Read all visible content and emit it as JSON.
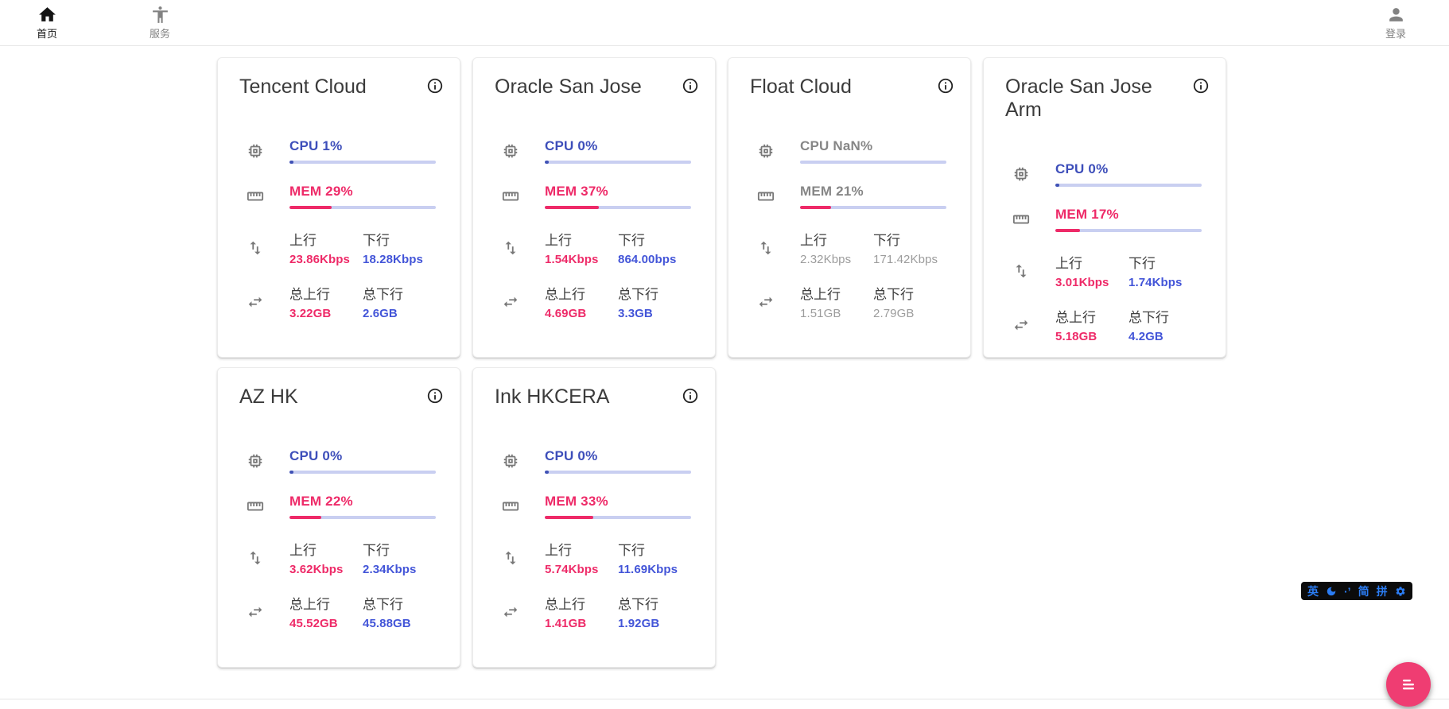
{
  "colors": {
    "accent_blue": "#3d4eba",
    "value_blue": "#4355d8",
    "accent_pink": "#ee2a68",
    "bar_blue": "#3f51b5",
    "bar_track": "#c9cff1",
    "muted_label": "#868686",
    "muted_value": "#9c9c9c",
    "fab_pink": "#ef3d72",
    "ime_blue": "#2b7cf2"
  },
  "navbar": {
    "items_left": [
      {
        "label": "首页",
        "icon": "home-icon",
        "active": true
      },
      {
        "label": "服务",
        "icon": "accessibility-icon",
        "active": false
      }
    ],
    "items_right": [
      {
        "label": "登录",
        "icon": "person-icon",
        "active": false
      }
    ]
  },
  "card_labels": {
    "up": "上行",
    "down": "下行",
    "total_up": "总上行",
    "total_down": "总下行"
  },
  "servers": [
    {
      "name": "Tencent Cloud",
      "cpu_label": "CPU 1%",
      "cpu_pct": 1,
      "mem_label": "MEM 29%",
      "mem_pct": 29,
      "up_value": "23.86Kbps",
      "down_value": "18.28Kbps",
      "total_up_value": "3.22GB",
      "total_down_value": "2.6GB",
      "muted": false
    },
    {
      "name": "Oracle San Jose",
      "cpu_label": "CPU 0%",
      "cpu_pct": 0,
      "mem_label": "MEM 37%",
      "mem_pct": 37,
      "up_value": "1.54Kbps",
      "down_value": "864.00bps",
      "total_up_value": "4.69GB",
      "total_down_value": "3.3GB",
      "muted": false
    },
    {
      "name": "Float Cloud",
      "cpu_label": "CPU NaN%",
      "cpu_pct": null,
      "mem_label": "MEM 21%",
      "mem_pct": 21,
      "up_value": "2.32Kbps",
      "down_value": "171.42Kbps",
      "total_up_value": "1.51GB",
      "total_down_value": "2.79GB",
      "muted": true
    },
    {
      "name": "Oracle San Jose Arm",
      "cpu_label": "CPU 0%",
      "cpu_pct": 0,
      "mem_label": "MEM 17%",
      "mem_pct": 17,
      "up_value": "3.01Kbps",
      "down_value": "1.74Kbps",
      "total_up_value": "5.18GB",
      "total_down_value": "4.2GB",
      "muted": false
    },
    {
      "name": "AZ HK",
      "cpu_label": "CPU 0%",
      "cpu_pct": 0,
      "mem_label": "MEM 22%",
      "mem_pct": 22,
      "up_value": "3.62Kbps",
      "down_value": "2.34Kbps",
      "total_up_value": "45.52GB",
      "total_down_value": "45.88GB",
      "muted": false
    },
    {
      "name": "Ink HKCERA",
      "cpu_label": "CPU 0%",
      "cpu_pct": 0,
      "mem_label": "MEM 33%",
      "mem_pct": 33,
      "up_value": "5.74Kbps",
      "down_value": "11.69Kbps",
      "total_up_value": "1.41GB",
      "total_down_value": "1.92GB",
      "muted": false
    }
  ],
  "ime_toolbar": {
    "items": [
      {
        "type": "text",
        "label": "英"
      },
      {
        "type": "icon",
        "name": "moon-icon"
      },
      {
        "type": "text",
        "label": "·’"
      },
      {
        "type": "text",
        "label": "简"
      },
      {
        "type": "text",
        "label": "拼"
      },
      {
        "type": "icon",
        "name": "gear-icon"
      }
    ]
  },
  "fab": {
    "icon": "list-icon"
  }
}
